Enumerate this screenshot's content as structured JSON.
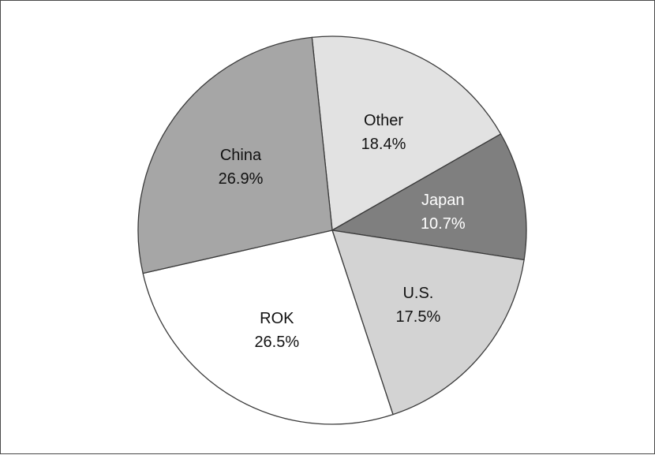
{
  "chart_data": {
    "type": "pie",
    "title": "",
    "start_angle_deg": -6,
    "direction": "clockwise",
    "slices": [
      {
        "label": "Other",
        "value": 18.4,
        "value_label": "18.4%",
        "color": "#e2e2e2",
        "text_color": "#111111"
      },
      {
        "label": "Japan",
        "value": 10.7,
        "value_label": "10.7%",
        "color": "#7f7f7f",
        "text_color": "#ffffff"
      },
      {
        "label": "U.S.",
        "value": 17.5,
        "value_label": "17.5%",
        "color": "#d3d3d3",
        "text_color": "#111111"
      },
      {
        "label": "ROK",
        "value": 26.5,
        "value_label": "26.5%",
        "color": "#ffffff",
        "text_color": "#111111"
      },
      {
        "label": "China",
        "value": 26.9,
        "value_label": "26.9%",
        "color": "#a6a6a6",
        "text_color": "#111111"
      }
    ],
    "stroke_color": "#3a3a3a"
  }
}
